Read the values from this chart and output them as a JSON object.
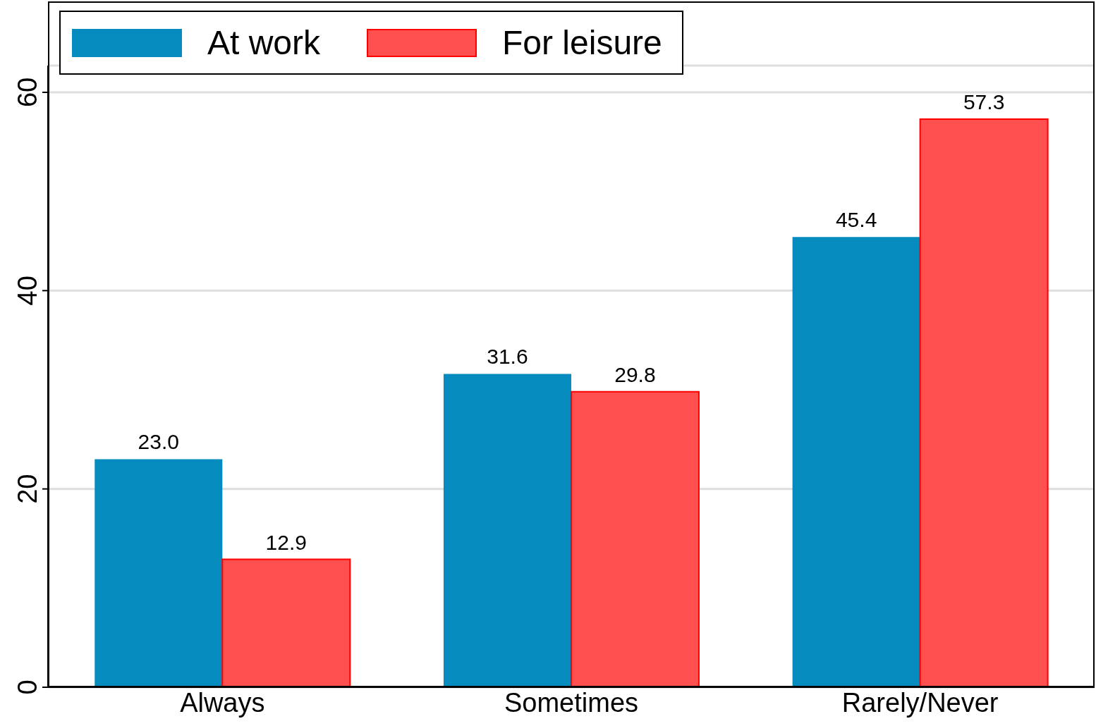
{
  "chart_data": {
    "type": "bar",
    "categories": [
      "Always",
      "Sometimes",
      "Rarely/Never"
    ],
    "series": [
      {
        "name": "At work",
        "color": "#058bbd",
        "values": [
          23.0,
          31.6,
          45.4
        ],
        "value_labels": [
          "23.0",
          "31.6",
          "45.4"
        ]
      },
      {
        "name": "For leisure",
        "color": "#ff4f4f",
        "values": [
          12.9,
          29.8,
          57.3
        ],
        "value_labels": [
          "12.9",
          "29.8",
          "57.3"
        ]
      }
    ],
    "ylim": [
      0,
      62.7
    ],
    "yticks": [
      0,
      20,
      40,
      60
    ],
    "grid": "y",
    "legend": "top left"
  }
}
